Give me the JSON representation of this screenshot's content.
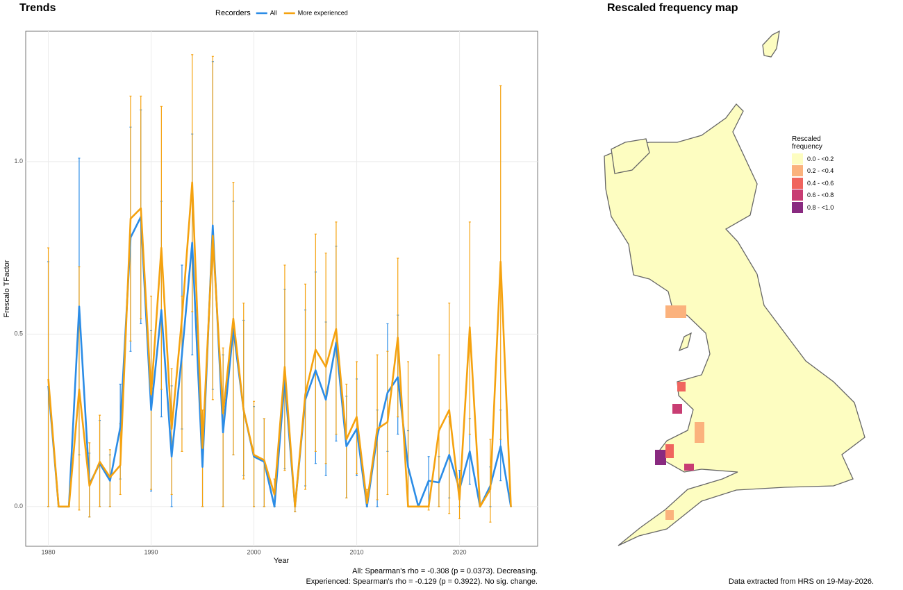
{
  "chart_data": [
    {
      "type": "line",
      "title": "Trends",
      "x_label": "Year",
      "y_label": "Frescalo TFactor",
      "legend_title": "Recorders",
      "legend_position": "top",
      "grid": true,
      "x": [
        1980,
        1981,
        1982,
        1983,
        1984,
        1985,
        1986,
        1987,
        1988,
        1989,
        1990,
        1991,
        1992,
        1993,
        1994,
        1995,
        1996,
        1997,
        1998,
        1999,
        2000,
        2001,
        2002,
        2003,
        2004,
        2005,
        2006,
        2007,
        2008,
        2009,
        2010,
        2011,
        2012,
        2013,
        2014,
        2015,
        2016,
        2017,
        2018,
        2019,
        2020,
        2021,
        2022,
        2023,
        2024,
        2025
      ],
      "xlim": [
        1977.8,
        2027.6
      ],
      "xticks": [
        1980,
        1990,
        2000,
        2010,
        2020
      ],
      "ylim": [
        -0.115,
        1.378
      ],
      "yticks": [
        {
          "value": 0,
          "label": "0.0"
        },
        {
          "value": 0.5,
          "label": "0.5"
        },
        {
          "value": 1,
          "label": "1.0"
        }
      ],
      "series": [
        {
          "name": "All",
          "color": "#2b8ce6",
          "values": [
            0.35,
            0,
            0,
            0.58,
            0.065,
            0.125,
            0.075,
            0.23,
            0.78,
            0.84,
            0.28,
            0.57,
            0.145,
            0.44,
            0.765,
            0.115,
            0.815,
            0.215,
            0.515,
            0.28,
            0.145,
            0.13,
            0,
            0.365,
            0,
            0.31,
            0.395,
            0.31,
            0.475,
            0.175,
            0.225,
            0,
            0.205,
            0.33,
            0.375,
            0.115,
            0,
            0.075,
            0.07,
            0.15,
            0.05,
            0.16,
            0,
            0.06,
            0.175,
            0
          ],
          "lower": [
            0,
            0,
            0,
            0.15,
            -0.03,
            0,
            0,
            0.08,
            0.45,
            0.53,
            0.045,
            0.26,
            0,
            0.225,
            0.44,
            0,
            0.34,
            0,
            0.15,
            0.09,
            0,
            0,
            0,
            0.11,
            -0.015,
            0.06,
            0.125,
            0.09,
            0.19,
            0.025,
            0.09,
            0,
            0,
            0.16,
            0.21,
            0,
            0,
            0,
            0,
            0.025,
            0,
            0.065,
            0,
            0,
            0.075,
            0
          ],
          "upper": [
            0.71,
            0,
            0,
            1.01,
            0.155,
            0.25,
            0.15,
            0.355,
            1.1,
            1.15,
            0.51,
            0.885,
            0.35,
            0.7,
            1.08,
            0.24,
            1.29,
            0.44,
            0.885,
            0.54,
            0.29,
            0.255,
            0,
            0.63,
            0,
            0.57,
            0.68,
            0.535,
            0.755,
            0.32,
            0.37,
            0,
            0.28,
            0.53,
            0.555,
            0.22,
            0,
            0.145,
            0.145,
            0.26,
            0.105,
            0.255,
            0,
            0.115,
            0.28,
            0
          ]
        },
        {
          "name": "More experienced",
          "color": "#f5a20f",
          "values": [
            0.37,
            0,
            0,
            0.34,
            0.06,
            0.13,
            0.085,
            0.12,
            0.835,
            0.865,
            0.325,
            0.75,
            0.225,
            0.545,
            0.94,
            0.17,
            0.785,
            0.27,
            0.545,
            0.28,
            0.15,
            0.135,
            0.035,
            0.405,
            0,
            0.325,
            0.455,
            0.405,
            0.515,
            0.195,
            0.26,
            0.01,
            0.225,
            0.245,
            0.49,
            0,
            0,
            0,
            0.22,
            0.28,
            0.02,
            0.52,
            0,
            0.05,
            0.71,
            0
          ],
          "lower": [
            0,
            0,
            0,
            -0.01,
            -0.03,
            0,
            0,
            0.035,
            0.48,
            0.545,
            0.05,
            0.34,
            0.035,
            0.16,
            0.565,
            0,
            0.31,
            0,
            0.15,
            0.08,
            0,
            0,
            0,
            0.105,
            -0.015,
            0.05,
            0.16,
            0.125,
            0.21,
            0.025,
            0.095,
            0,
            0.02,
            0.035,
            0.26,
            0,
            0,
            -0.01,
            0,
            -0.02,
            -0.035,
            0.21,
            0,
            -0.045,
            0.195,
            0
          ],
          "upper": [
            0.75,
            0,
            0,
            0.695,
            0.185,
            0.265,
            0.165,
            0.24,
            1.19,
            1.19,
            0.61,
            1.16,
            0.4,
            0.61,
            1.31,
            0.28,
            1.305,
            0.46,
            0.94,
            0.59,
            0.305,
            0.255,
            0.08,
            0.7,
            0,
            0.645,
            0.79,
            0.735,
            0.825,
            0.355,
            0.42,
            0.05,
            0.44,
            0.45,
            0.72,
            0.42,
            0,
            0,
            0.44,
            0.59,
            0.08,
            0.825,
            0,
            0.195,
            1.22,
            0
          ]
        }
      ],
      "annotations": [
        "All: Spearman's rho = -0.308 (p = 0.0373). Decreasing.",
        "Experienced: Spearman's rho = -0.129 (p = 0.3922). No sig. change."
      ]
    },
    {
      "type": "map",
      "title": "Rescaled frequency map",
      "legend_title": "Rescaled frequency",
      "categories": [
        "0.0 - <0.2",
        "0.2 - <0.4",
        "0.4 - <0.6",
        "0.6 - <0.8",
        "0.8 - <1.0"
      ],
      "colors": [
        "#fdfdc1",
        "#fbb27d",
        "#f0645e",
        "#c83d73",
        "#892a80"
      ],
      "caption": "Data extracted from HRS on 19-May-2026."
    }
  ]
}
